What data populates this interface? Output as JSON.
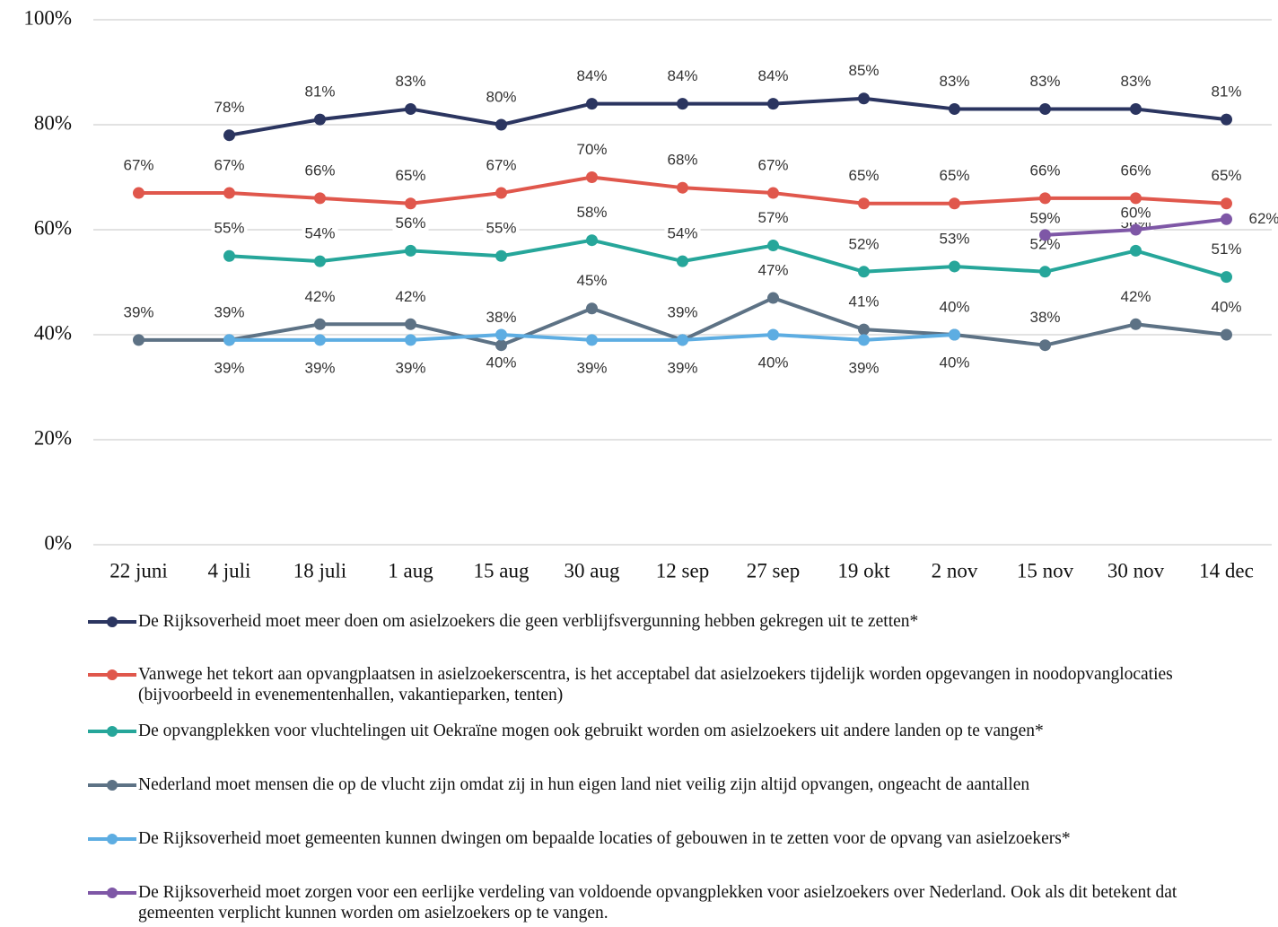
{
  "chart_data": {
    "type": "line",
    "grid": true,
    "legend": "bottom",
    "categories": [
      "22 juni",
      "4 juli",
      "18 juli",
      "1 aug",
      "15 aug",
      "30 aug",
      "12 sep",
      "27 sep",
      "19 okt",
      "2 nov",
      "15 nov",
      "30 nov",
      "14 dec"
    ],
    "ylim": [
      0,
      100
    ],
    "yticks": [
      {
        "value": 0,
        "label": "0%"
      },
      {
        "value": 20,
        "label": "20%"
      },
      {
        "value": 40,
        "label": "40%"
      },
      {
        "value": 60,
        "label": "60%"
      },
      {
        "value": 80,
        "label": "80%"
      },
      {
        "value": 100,
        "label": "100%"
      }
    ],
    "series": [
      {
        "name": "De Rijksoverheid moet meer doen om asielzoekers die geen verblijfsvergunning hebben gekregen uit te zetten*",
        "color": "#2b3560",
        "values": [
          null,
          78,
          81,
          83,
          80,
          84,
          84,
          84,
          85,
          83,
          83,
          83,
          81
        ],
        "value_labels": [
          null,
          "78%",
          "81%",
          "83%",
          "80%",
          "84%",
          "84%",
          "84%",
          "85%",
          "83%",
          "83%",
          "83%",
          "81%"
        ]
      },
      {
        "name": "Vanwege het tekort aan opvangplaatsen in asielzoekerscentra, is het acceptabel dat asielzoekers tijdelijk worden opgevangen in noodopvanglocaties (bijvoorbeeld in evenementenhallen, vakantieparken, tenten)",
        "color": "#e0574c",
        "values": [
          67,
          67,
          66,
          65,
          67,
          70,
          68,
          67,
          65,
          65,
          66,
          66,
          65
        ],
        "value_labels": [
          "67%",
          "67%",
          "66%",
          "65%",
          "67%",
          "70%",
          "68%",
          "67%",
          "65%",
          "65%",
          "66%",
          "66%",
          "65%"
        ]
      },
      {
        "name": "De opvangplekken voor vluchtelingen uit Oekraïne mogen ook gebruikt worden om asielzoekers uit andere landen op te vangen*",
        "color": "#26a69a",
        "values": [
          null,
          55,
          54,
          56,
          55,
          58,
          54,
          57,
          52,
          53,
          52,
          56,
          51
        ],
        "value_labels": [
          null,
          "55%",
          "54%",
          "56%",
          "55%",
          "58%",
          "54%",
          "57%",
          "52%",
          "53%",
          "52%",
          "56%",
          "51%"
        ]
      },
      {
        "name": "Nederland moet mensen die op de vlucht zijn omdat zij in hun eigen land niet veilig zijn altijd opvangen, ongeacht de aantallen",
        "color": "#5d7285",
        "values": [
          39,
          39,
          42,
          42,
          38,
          45,
          39,
          47,
          41,
          40,
          38,
          42,
          40
        ],
        "value_labels": [
          "39%",
          "39%",
          "42%",
          "42%",
          "38%",
          "45%",
          "39%",
          "47%",
          "41%",
          "40%",
          "38%",
          "42%",
          "40%"
        ]
      },
      {
        "name": "De Rijksoverheid moet gemeenten kunnen dwingen om bepaalde locaties of gebouwen in te zetten voor de opvang van asielzoekers*",
        "color": "#5dade2",
        "values": [
          null,
          39,
          39,
          39,
          40,
          39,
          39,
          40,
          39,
          40,
          null,
          null,
          null
        ],
        "value_labels": [
          null,
          "39%",
          "39%",
          "39%",
          "40%",
          "39%",
          "39%",
          "40%",
          "39%",
          "40%",
          null,
          null,
          null
        ]
      },
      {
        "name": "De Rijksoverheid moet zorgen voor een eerlijke verdeling van voldoende opvangplekken voor asielzoekers over Nederland. Ook als dit betekent dat gemeenten verplicht kunnen worden om asielzoekers op te vangen.",
        "color": "#7e57a6",
        "values": [
          null,
          null,
          null,
          null,
          null,
          null,
          null,
          null,
          null,
          null,
          59,
          60,
          62
        ],
        "value_labels": [
          null,
          null,
          null,
          null,
          null,
          null,
          null,
          null,
          null,
          null,
          "59%",
          "60%",
          "62%"
        ]
      }
    ]
  }
}
